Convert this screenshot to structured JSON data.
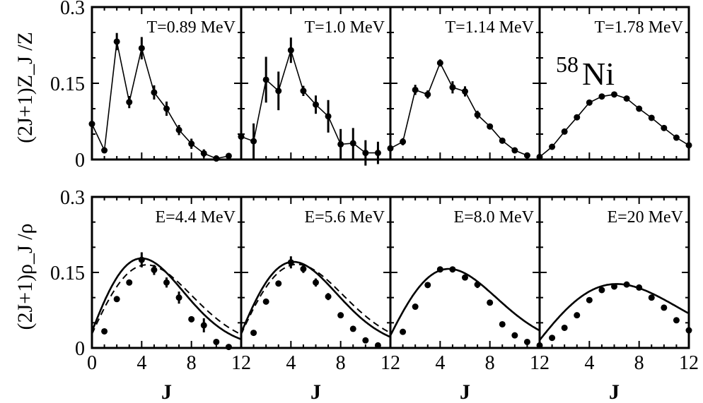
{
  "chart_data": [
    {
      "type": "line",
      "row": "top",
      "title": "T=0.89 MeV",
      "ylabel": "(2J+1)Z_J /Z",
      "xlabel": "",
      "xlim": [
        0,
        12
      ],
      "ylim": [
        0,
        0.3
      ],
      "series": [
        {
          "x": [
            0,
            1,
            2,
            3,
            4,
            5,
            6,
            7,
            8,
            9,
            10,
            11
          ],
          "y": [
            0.07,
            0.018,
            0.232,
            0.113,
            0.219,
            0.132,
            0.1,
            0.058,
            0.031,
            0.012,
            0.002,
            0.007
          ],
          "err": [
            0.005,
            0.005,
            0.017,
            0.012,
            0.022,
            0.014,
            0.014,
            0.01,
            0.01,
            0.008,
            0.006,
            0.006
          ],
          "style": "thin-markers"
        }
      ]
    },
    {
      "type": "line",
      "row": "top",
      "title": "T=1.0 MeV",
      "xlabel": "",
      "xlim": [
        0,
        12
      ],
      "ylim": [
        0,
        0.3
      ],
      "series": [
        {
          "x": [
            0,
            1,
            2,
            3,
            4,
            5,
            6,
            7,
            8,
            9,
            10,
            11
          ],
          "y": [
            0.045,
            0.036,
            0.157,
            0.135,
            0.215,
            0.135,
            0.108,
            0.085,
            0.03,
            0.032,
            0.013,
            0.013
          ],
          "err": [
            0.012,
            0.035,
            0.045,
            0.038,
            0.025,
            0.01,
            0.018,
            0.032,
            0.03,
            0.03,
            0.025,
            0.022
          ],
          "style": "thin-markers"
        }
      ]
    },
    {
      "type": "line",
      "row": "top",
      "title": "T=1.14 MeV",
      "xlabel": "",
      "xlim": [
        0,
        12
      ],
      "ylim": [
        0,
        0.3
      ],
      "series": [
        {
          "x": [
            0,
            1,
            2,
            3,
            4,
            5,
            6,
            7,
            8,
            9,
            10,
            11
          ],
          "y": [
            0.022,
            0.035,
            0.137,
            0.128,
            0.19,
            0.142,
            0.134,
            0.088,
            0.065,
            0.037,
            0.018,
            0.008
          ],
          "err": [
            0.004,
            0.007,
            0.01,
            0.008,
            0.007,
            0.012,
            0.01,
            0.008,
            0.005,
            0.004,
            0.003,
            0.003
          ],
          "style": "thin-markers"
        }
      ]
    },
    {
      "type": "line",
      "row": "top",
      "title": "T=1.78 MeV",
      "annotation": "58 Ni",
      "annotation_sup": "58",
      "annotation_main": "Ni",
      "xlabel": "",
      "xlim": [
        0,
        12
      ],
      "ylim": [
        0,
        0.3
      ],
      "series": [
        {
          "x": [
            0,
            1,
            2,
            3,
            4,
            5,
            6,
            7,
            8,
            9,
            10,
            11,
            12
          ],
          "y": [
            0.005,
            0.025,
            0.055,
            0.083,
            0.112,
            0.124,
            0.128,
            0.12,
            0.1,
            0.082,
            0.062,
            0.043,
            0.028
          ],
          "err": [
            0,
            0,
            0,
            0,
            0,
            0,
            0,
            0,
            0,
            0,
            0,
            0,
            0
          ],
          "style": "thin-markers"
        }
      ]
    },
    {
      "type": "line",
      "row": "bottom",
      "title": "E=4.4 MeV",
      "ylabel": "(2J+1)ρ_J /ρ",
      "xlabel": "J",
      "xlim": [
        0,
        12
      ],
      "ylim": [
        0,
        0.3
      ],
      "xticks": [
        "0",
        "4",
        "8",
        "12"
      ],
      "curve_peak": {
        "solid": [
          4.0,
          0.178
        ],
        "dashed": [
          4.4,
          0.165
        ]
      },
      "series": [
        {
          "x": [
            1,
            2,
            3,
            4,
            5,
            6,
            7,
            8,
            9,
            10,
            11
          ],
          "y": [
            0.033,
            0.097,
            0.13,
            0.175,
            0.155,
            0.13,
            0.1,
            0.057,
            0.045,
            0.012,
            0.002
          ],
          "err": [
            0.003,
            0.005,
            0.006,
            0.015,
            0.01,
            0.01,
            0.012,
            0.006,
            0.014,
            0.003,
            0.002
          ],
          "style": "markers"
        }
      ]
    },
    {
      "type": "line",
      "row": "bottom",
      "title": "E=5.6 MeV",
      "xlabel": "J",
      "xlim": [
        0,
        12
      ],
      "ylim": [
        0,
        0.3
      ],
      "xticks": [
        "",
        "4",
        "8",
        "12"
      ],
      "curve_peak": {
        "solid": [
          4.2,
          0.171
        ],
        "dashed": [
          4.5,
          0.166
        ]
      },
      "series": [
        {
          "x": [
            1,
            2,
            3,
            4,
            5,
            6,
            7,
            8,
            9,
            10,
            11
          ],
          "y": [
            0.03,
            0.092,
            0.128,
            0.17,
            0.157,
            0.13,
            0.102,
            0.065,
            0.038,
            0.015,
            0.005
          ],
          "err": [
            0.003,
            0.005,
            0.006,
            0.012,
            0.008,
            0.008,
            0.007,
            0.005,
            0.004,
            0.002,
            0.002
          ],
          "style": "markers"
        }
      ]
    },
    {
      "type": "line",
      "row": "bottom",
      "title": "E=8.0 MeV",
      "xlabel": "J",
      "xlim": [
        0,
        12
      ],
      "ylim": [
        0,
        0.3
      ],
      "xticks": [
        "",
        "4",
        "8",
        "12"
      ],
      "curve_peak": {
        "solid": [
          4.7,
          0.157
        ],
        "dashed": [
          4.7,
          0.157
        ]
      },
      "series": [
        {
          "x": [
            1,
            2,
            3,
            4,
            5,
            6,
            7,
            8,
            9,
            10,
            11
          ],
          "y": [
            0.032,
            0.082,
            0.125,
            0.156,
            0.156,
            0.14,
            0.126,
            0.09,
            0.047,
            0.025,
            0.012
          ],
          "err": [
            0.002,
            0.003,
            0.004,
            0.006,
            0.004,
            0.004,
            0.007,
            0.004,
            0.003,
            0.002,
            0.002
          ],
          "style": "markers"
        }
      ]
    },
    {
      "type": "line",
      "row": "bottom",
      "title": "E=20 MeV",
      "xlabel": "J",
      "xlim": [
        0,
        12
      ],
      "ylim": [
        0,
        0.3
      ],
      "xticks": [
        "",
        "4",
        "8",
        "12"
      ],
      "curve_peak": {
        "solid": [
          6.2,
          0.127
        ],
        "dashed": [
          6.2,
          0.127
        ]
      },
      "series": [
        {
          "x": [
            0,
            1,
            2,
            3,
            4,
            5,
            6,
            7,
            8,
            9,
            10,
            11,
            12
          ],
          "y": [
            0.005,
            0.02,
            0.04,
            0.065,
            0.095,
            0.115,
            0.122,
            0.126,
            0.12,
            0.1,
            0.08,
            0.055,
            0.035
          ],
          "err": [
            0,
            0,
            0,
            0,
            0,
            0,
            0,
            0,
            0,
            0,
            0,
            0,
            0
          ],
          "style": "markers"
        }
      ]
    }
  ],
  "y_tick_labels": [
    "0",
    "0.15",
    "0.3"
  ]
}
